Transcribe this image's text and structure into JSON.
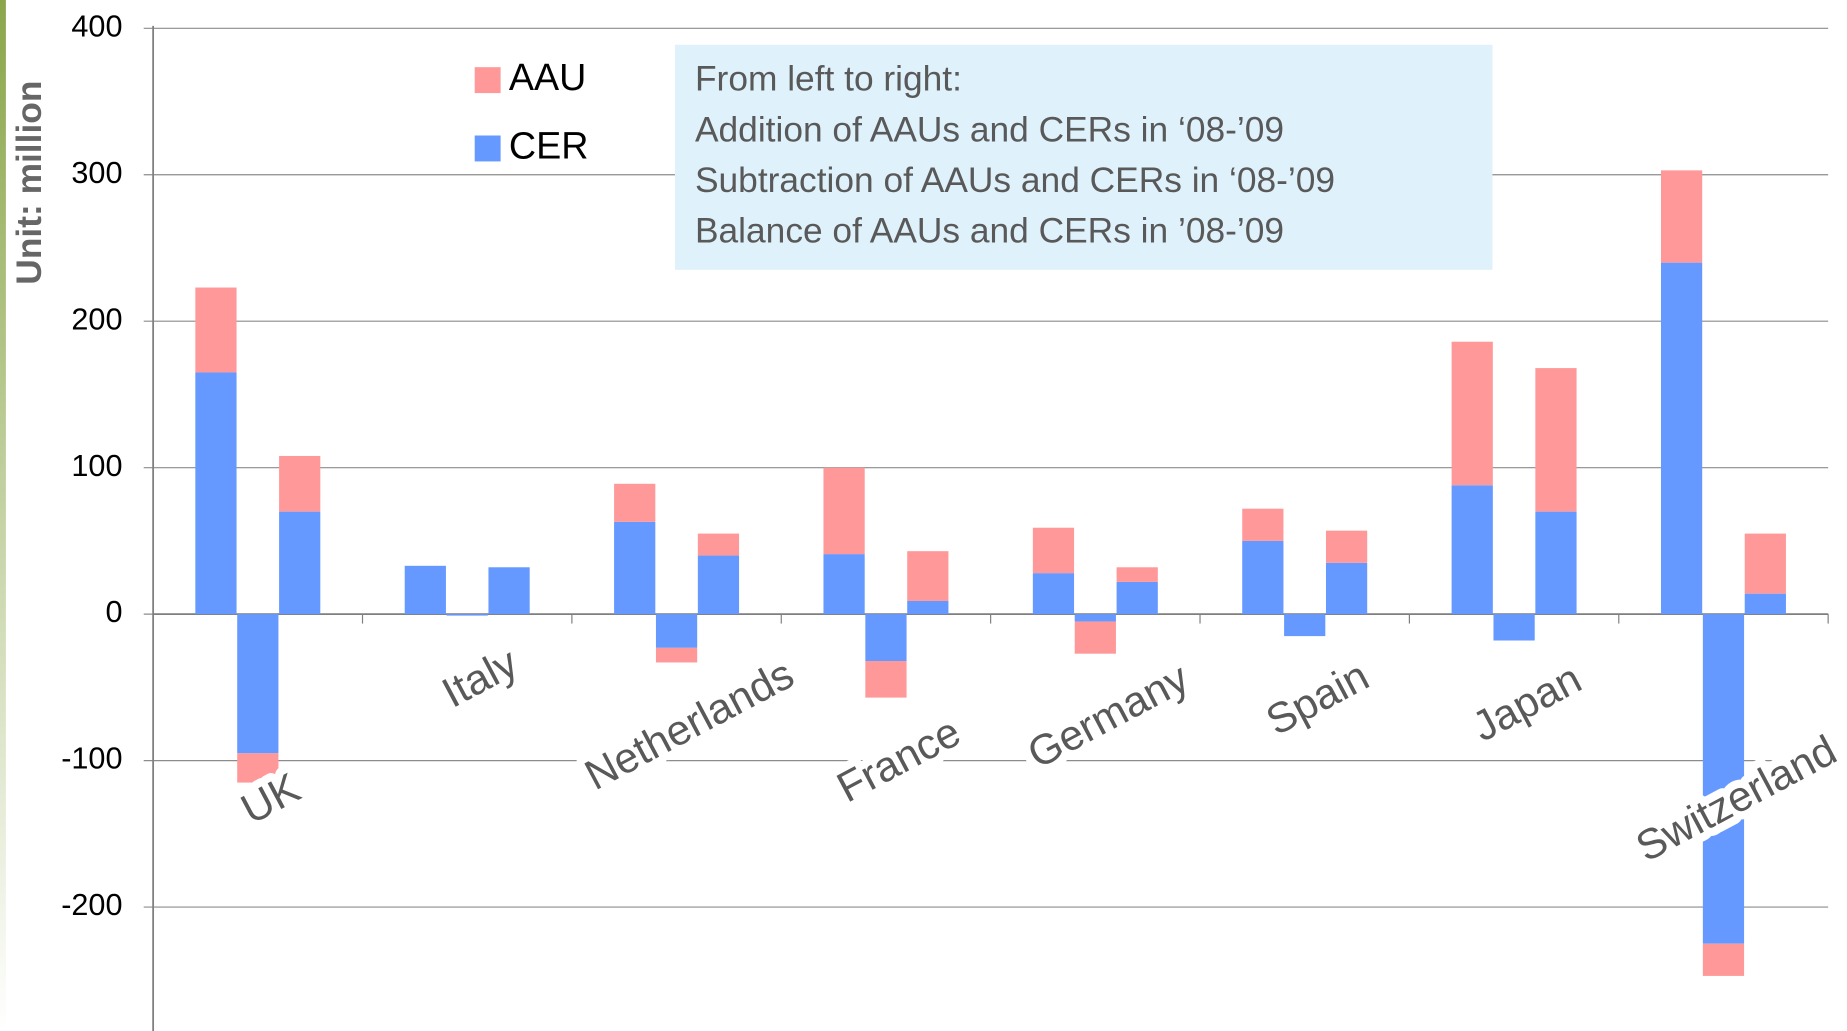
{
  "chart_data": {
    "type": "bar",
    "stacked": true,
    "y_label": "Unit: million",
    "annotation": [
      "From left to right:",
      "Addition of AAUs and CERs in ‘08-’09",
      "Subtraction of AAUs and CERs in ‘08-’09",
      "Balance of AAUs and CERs in ’08-’09"
    ],
    "categories": [
      null,
      "UK",
      null,
      null,
      "Italy",
      null,
      null,
      "Netherlands",
      null,
      null,
      "France",
      null,
      null,
      "Germany",
      null,
      null,
      "Spain",
      null,
      null,
      "Japan",
      null,
      null,
      "Switzerland",
      null
    ],
    "series": [
      {
        "name": "CER",
        "color": "#6699ff",
        "values": [
          165,
          -95,
          70,
          33,
          -1,
          32,
          63,
          -23,
          40,
          41,
          -32,
          9,
          28,
          -5,
          22,
          50,
          -15,
          35,
          88,
          -18,
          70,
          240,
          -225,
          14
        ]
      },
      {
        "name": "AAU",
        "color": "#ff9999",
        "values": [
          58,
          -20,
          38,
          0,
          0,
          0,
          26,
          -10,
          15,
          59,
          -25,
          34,
          31,
          -22,
          10,
          22,
          0,
          22,
          98,
          0,
          98,
          63,
          -22,
          41
        ]
      }
    ],
    "legend_order": [
      1,
      0
    ],
    "ylim": [
      -283,
      400
    ],
    "yticks": [
      -200,
      -100,
      0,
      100,
      200,
      300,
      400
    ],
    "grid": true
  }
}
